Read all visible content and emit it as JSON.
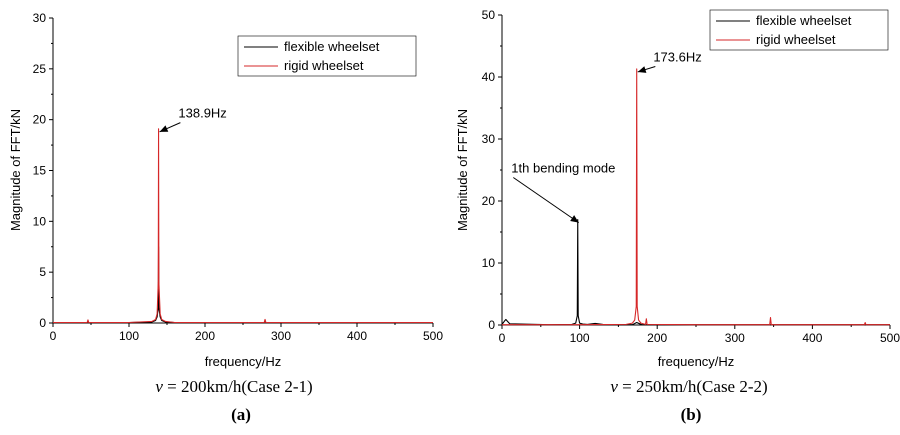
{
  "chart_data": [
    {
      "type": "line",
      "panel_letter": "(a)",
      "caption": {
        "v": "v",
        "rest": " = 200km/h(Case 2-1)"
      },
      "xlabel": "frequency/Hz",
      "ylabel": "Magnitude of FFT/kN",
      "xlim": [
        0,
        500
      ],
      "ylim": [
        0,
        30
      ],
      "xticks": [
        "0",
        "100",
        "200",
        "300",
        "400",
        "500"
      ],
      "yticks": [
        "0",
        "5",
        "10",
        "15",
        "20",
        "25",
        "30"
      ],
      "grid": false,
      "legend_position": "top-right",
      "series": [
        {
          "name": "flexible wheelset",
          "color": "#000000",
          "x": [
            0,
            45,
            46,
            47,
            100,
            130,
            135,
            137,
            138.5,
            138.9,
            139.3,
            141,
            143,
            148,
            160,
            230,
            278,
            279,
            280,
            350,
            500
          ],
          "y": [
            0.05,
            0.05,
            0.15,
            0.05,
            0.05,
            0.1,
            0.25,
            0.6,
            1.5,
            7.5,
            1.5,
            0.6,
            0.25,
            0.1,
            0.05,
            0.05,
            0.05,
            0.25,
            0.05,
            0.05,
            0.05
          ]
        },
        {
          "name": "rigid wheelset",
          "color": "#d62728",
          "x": [
            0,
            45,
            46,
            47,
            100,
            130,
            135,
            137,
            138.5,
            138.9,
            139.3,
            141,
            143,
            148,
            160,
            230,
            278,
            279,
            280,
            350,
            500
          ],
          "y": [
            0.05,
            0.05,
            0.3,
            0.05,
            0.05,
            0.15,
            0.35,
            0.9,
            4.0,
            19.1,
            4.0,
            0.9,
            0.35,
            0.15,
            0.05,
            0.05,
            0.05,
            0.35,
            0.05,
            0.05,
            0.05
          ]
        }
      ],
      "annotations": [
        {
          "text": "138.9Hz",
          "x": 138.9,
          "y": 19.1,
          "label_x": 165,
          "label_y": 20.2
        }
      ]
    },
    {
      "type": "line",
      "panel_letter": "(b)",
      "caption": {
        "v": "v",
        "rest": " = 250km/h(Case 2-2)"
      },
      "xlabel": "frequency/Hz",
      "ylabel": "Magnitude of FFT/kN",
      "xlim": [
        0,
        500
      ],
      "ylim": [
        0,
        50
      ],
      "xticks": [
        "0",
        "100",
        "200",
        "300",
        "400",
        "500"
      ],
      "yticks": [
        "0",
        "10",
        "20",
        "30",
        "40",
        "50"
      ],
      "grid": false,
      "legend_position": "top-right",
      "series": [
        {
          "name": "flexible wheelset",
          "color": "#000000",
          "x": [
            0,
            3,
            5,
            7,
            10,
            60,
            90,
            95,
            97,
            97.6,
            98.2,
            100,
            104,
            110,
            120,
            130,
            140,
            168,
            173.6,
            180,
            250,
            500
          ],
          "y": [
            0.1,
            0.6,
            0.9,
            0.6,
            0.2,
            0.05,
            0.1,
            0.3,
            1.5,
            17.0,
            1.5,
            0.3,
            0.15,
            0.1,
            0.25,
            0.1,
            0.05,
            0.05,
            0.4,
            0.05,
            0.05,
            0.05
          ]
        },
        {
          "name": "rigid wheelset",
          "color": "#d62728",
          "x": [
            0,
            97.6,
            160,
            168,
            171,
            173,
            173.6,
            174.2,
            176,
            179,
            185,
            186,
            187,
            250,
            345,
            346,
            347,
            420,
            467,
            468,
            469,
            500
          ],
          "y": [
            0.05,
            0.05,
            0.1,
            0.3,
            0.8,
            3.0,
            41.3,
            3.0,
            0.8,
            0.3,
            0.1,
            1.0,
            0.1,
            0.05,
            0.05,
            1.2,
            0.05,
            0.05,
            0.05,
            0.4,
            0.05,
            0.05
          ]
        }
      ],
      "annotations": [
        {
          "text": "173.6Hz",
          "x": 173.6,
          "y": 41.3,
          "label_x": 195,
          "label_y": 42.5
        },
        {
          "text": "1th bending mode",
          "x": 97.6,
          "y": 17.0,
          "label_x": 12,
          "label_y": 24.6
        }
      ]
    }
  ]
}
